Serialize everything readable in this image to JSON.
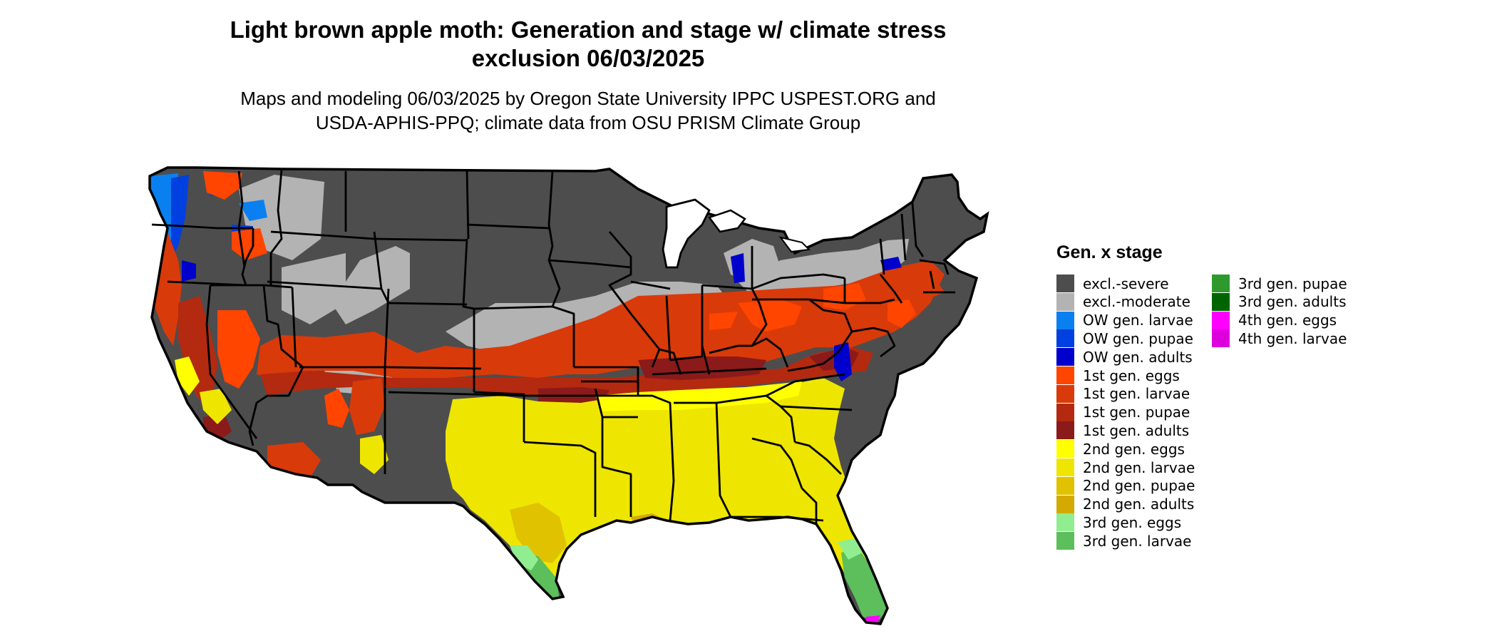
{
  "title": {
    "line1": "Light brown apple moth: Generation and stage w/ climate stress",
    "line2": "exclusion 06/03/2025"
  },
  "subtitle": {
    "line1": "Maps and modeling 06/03/2025 by Oregon State University IPPC USPEST.ORG and",
    "line2": "USDA-APHIS-PPQ; climate data from OSU PRISM Climate Group"
  },
  "legend": {
    "title": "Gen. x stage",
    "items": [
      {
        "label": "excl.-severe",
        "color": "#4d4d4d"
      },
      {
        "label": "excl.-moderate",
        "color": "#b3b3b3"
      },
      {
        "label": "OW gen. larvae",
        "color": "#0a80f0"
      },
      {
        "label": "OW gen. pupae",
        "color": "#0040e0"
      },
      {
        "label": "OW gen. adults",
        "color": "#0000cd"
      },
      {
        "label": "1st gen. eggs",
        "color": "#ff4500"
      },
      {
        "label": "1st gen. larvae",
        "color": "#d93a0a"
      },
      {
        "label": "1st gen. pupae",
        "color": "#b32a10"
      },
      {
        "label": "1st gen. adults",
        "color": "#8b1a1a"
      },
      {
        "label": "2nd gen. eggs",
        "color": "#ffff00"
      },
      {
        "label": "2nd gen. larvae",
        "color": "#eee600"
      },
      {
        "label": "2nd gen. pupae",
        "color": "#e0c200"
      },
      {
        "label": "2nd gen. adults",
        "color": "#d4aa00"
      },
      {
        "label": "3rd gen. eggs",
        "color": "#90ee90"
      },
      {
        "label": "3rd gen. larvae",
        "color": "#5cbf5c"
      },
      {
        "label": "3rd gen. pupae",
        "color": "#2e9a2e"
      },
      {
        "label": "3rd gen. adults",
        "color": "#006400"
      },
      {
        "label": "4th gen. eggs",
        "color": "#ff00ff"
      },
      {
        "label": "4th gen. larvae",
        "color": "#dd00dd"
      }
    ]
  }
}
